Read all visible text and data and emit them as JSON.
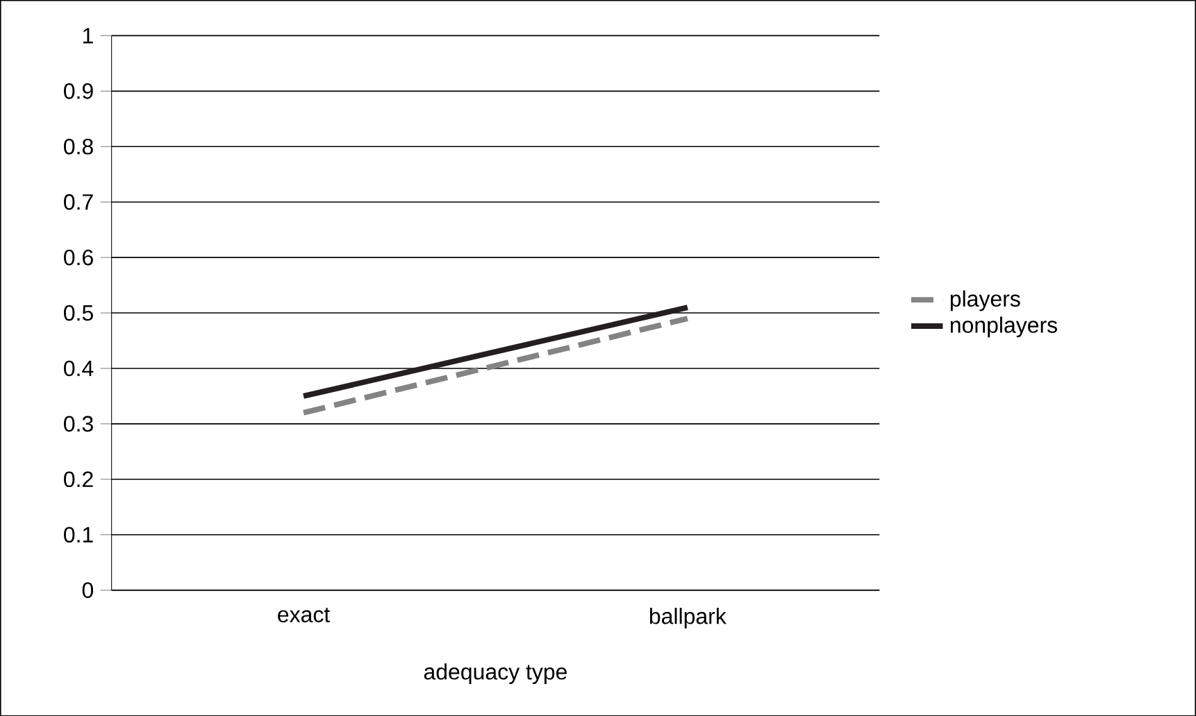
{
  "chart_data": {
    "type": "line",
    "xlabel": "adequacy type",
    "categories": [
      "exact",
      "ballpark"
    ],
    "series": [
      {
        "name": "players",
        "color": "#848484",
        "values": [
          0.32,
          0.49
        ],
        "line_style": "dashed"
      },
      {
        "name": "nonplayers",
        "color": "#231f20",
        "values": [
          0.35,
          0.51
        ],
        "line_style": "solid"
      }
    ],
    "ylim": [
      0,
      1
    ],
    "yticks": [
      0,
      0.1,
      0.2,
      0.3,
      0.4,
      0.5,
      0.6,
      0.7,
      0.8,
      0.9,
      1
    ],
    "grid": "y",
    "legend": "right",
    "marker": "none"
  }
}
